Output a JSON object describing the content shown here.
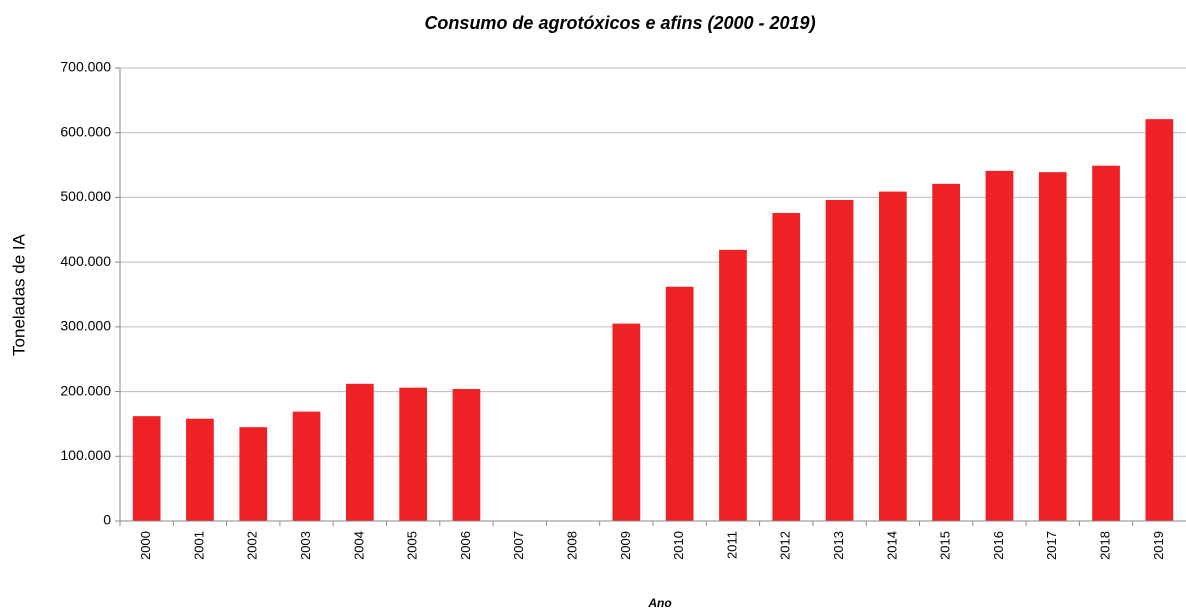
{
  "chart_data": {
    "type": "bar",
    "title": "Consumo de agrotóxicos e afins (2000 - 2019)",
    "x_label": "Ano",
    "y_label": "Toneladas de IA",
    "categories": [
      "2000",
      "2001",
      "2002",
      "2003",
      "2004",
      "2005",
      "2006",
      "2007",
      "2008",
      "2009",
      "2010",
      "2011",
      "2012",
      "2013",
      "2014",
      "2015",
      "2016",
      "2017",
      "2018",
      "2019"
    ],
    "values": [
      162000,
      158000,
      145000,
      169000,
      212000,
      206000,
      204000,
      null,
      null,
      305000,
      362000,
      419000,
      476000,
      496000,
      509000,
      521000,
      541000,
      539000,
      549000,
      621000
    ],
    "color": "#ee2224",
    "ylim": [
      0,
      700000
    ],
    "yticks": [
      0,
      {
        "value": 100000,
        "label": "100.000"
      },
      {
        "value": 200000,
        "label": "200.000"
      },
      {
        "value": 300000,
        "label": "300.000"
      },
      {
        "value": 400000,
        "label": "400.000"
      },
      {
        "value": 500000,
        "label": "500.000"
      },
      {
        "value": 600000,
        "label": "600.000"
      },
      {
        "value": 700000,
        "label": "700.000"
      }
    ],
    "grid": true
  }
}
